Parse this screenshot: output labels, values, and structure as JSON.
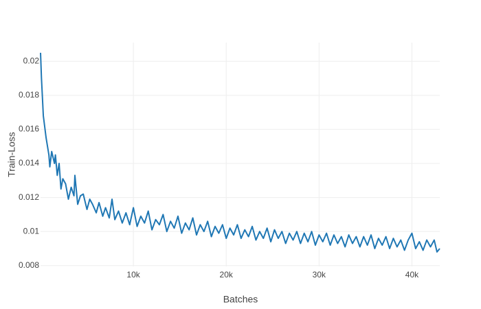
{
  "chart_data": {
    "type": "line",
    "xlabel": "Batches",
    "ylabel": "Train-Loss",
    "x": [
      0,
      100,
      300,
      600,
      900,
      1000,
      1200,
      1500,
      1600,
      1800,
      2000,
      2200,
      2400,
      2700,
      3000,
      3300,
      3600,
      3700,
      4000,
      4300,
      4600,
      5000,
      5300,
      5600,
      6000,
      6300,
      6700,
      7000,
      7400,
      7700,
      8000,
      8400,
      8800,
      9200,
      9600,
      10000,
      10400,
      10800,
      11200,
      11600,
      12000,
      12400,
      12800,
      13200,
      13600,
      14000,
      14400,
      14800,
      15200,
      15600,
      16000,
      16400,
      16800,
      17200,
      17600,
      18000,
      18400,
      18800,
      19200,
      19600,
      20000,
      20400,
      20800,
      21200,
      21600,
      22000,
      22400,
      22800,
      23200,
      23600,
      24000,
      24400,
      24800,
      25200,
      25600,
      26000,
      26400,
      26800,
      27200,
      27600,
      28000,
      28400,
      28800,
      29200,
      29600,
      30000,
      30400,
      30800,
      31200,
      31600,
      32000,
      32400,
      32800,
      33200,
      33600,
      34000,
      34400,
      34800,
      35200,
      35600,
      36000,
      36400,
      36800,
      37200,
      37600,
      38000,
      38400,
      38800,
      39200,
      39600,
      40000,
      40400,
      40800,
      41200,
      41600,
      42000,
      42400,
      42700,
      43000
    ],
    "series": [
      {
        "name": "Train-Loss",
        "color": "#1f77b4",
        "values": [
          0.0205,
          0.019,
          0.0168,
          0.0155,
          0.0145,
          0.0138,
          0.0147,
          0.014,
          0.0145,
          0.0133,
          0.014,
          0.0125,
          0.0131,
          0.0128,
          0.0119,
          0.0126,
          0.0121,
          0.0133,
          0.0116,
          0.0121,
          0.0122,
          0.0113,
          0.0119,
          0.0116,
          0.0111,
          0.0117,
          0.0109,
          0.0114,
          0.0108,
          0.0119,
          0.0107,
          0.0112,
          0.0105,
          0.0111,
          0.0104,
          0.0114,
          0.0103,
          0.0109,
          0.0105,
          0.0112,
          0.0101,
          0.0107,
          0.0104,
          0.011,
          0.01,
          0.0106,
          0.0102,
          0.0109,
          0.0099,
          0.0105,
          0.0101,
          0.0108,
          0.0098,
          0.0104,
          0.01,
          0.0106,
          0.0097,
          0.0103,
          0.0099,
          0.0104,
          0.0096,
          0.0102,
          0.0098,
          0.0104,
          0.0096,
          0.0101,
          0.0097,
          0.0103,
          0.0095,
          0.01,
          0.0096,
          0.0102,
          0.0094,
          0.0101,
          0.0096,
          0.01,
          0.0093,
          0.0099,
          0.0095,
          0.01,
          0.0093,
          0.0099,
          0.0094,
          0.01,
          0.0092,
          0.0098,
          0.0094,
          0.0099,
          0.0092,
          0.0098,
          0.0093,
          0.0097,
          0.0091,
          0.0098,
          0.0093,
          0.0097,
          0.0091,
          0.0097,
          0.0092,
          0.0098,
          0.009,
          0.0096,
          0.0092,
          0.0097,
          0.009,
          0.0096,
          0.0091,
          0.0095,
          0.0089,
          0.0095,
          0.0099,
          0.009,
          0.0094,
          0.0089,
          0.0095,
          0.0091,
          0.0095,
          0.0088,
          0.009
        ]
      }
    ],
    "xlim": [
      0,
      43000
    ],
    "ylim": [
      0.00795,
      0.0211
    ],
    "xticks": [
      {
        "value": 10000,
        "label": "10k"
      },
      {
        "value": 20000,
        "label": "20k"
      },
      {
        "value": 30000,
        "label": "30k"
      },
      {
        "value": 40000,
        "label": "40k"
      }
    ],
    "yticks": [
      0.008,
      0.01,
      0.012,
      0.014,
      0.016,
      0.018,
      0.02
    ],
    "grid": true
  }
}
